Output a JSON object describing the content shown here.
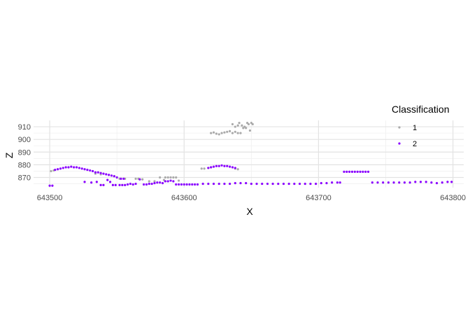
{
  "chart_data": {
    "type": "scatter",
    "xlabel": "X",
    "ylabel": "Z",
    "xlim": [
      643488,
      643808
    ],
    "ylim": [
      862,
      915
    ],
    "x_ticks": [
      643500,
      643600,
      643700,
      643800
    ],
    "x_tick_labels": [
      "643500",
      "643600",
      "643700",
      "643800"
    ],
    "y_ticks": [
      870,
      880,
      890,
      900,
      910
    ],
    "y_tick_labels": [
      "870",
      "880",
      "890",
      "900",
      "910"
    ],
    "grid": true,
    "legend": {
      "title": "Classification",
      "placement": "right",
      "entries": [
        {
          "label": "1",
          "color": "#aaaaaa"
        },
        {
          "label": "2",
          "color": "#8a00ff"
        }
      ]
    },
    "series": [
      {
        "name": "1",
        "color": "#aaaaaa",
        "points": [
          [
            643501,
            875
          ],
          [
            643503,
            875.5
          ],
          [
            643534,
            873
          ],
          [
            643538,
            872.5
          ],
          [
            643548,
            871
          ],
          [
            643552,
            869
          ],
          [
            643556,
            869
          ],
          [
            643564,
            869
          ],
          [
            643566,
            869
          ],
          [
            643569,
            868.5
          ],
          [
            643574,
            867
          ],
          [
            643578,
            867
          ],
          [
            643582,
            870
          ],
          [
            643585,
            868
          ],
          [
            643586,
            870
          ],
          [
            643588,
            870
          ],
          [
            643590,
            870
          ],
          [
            643592,
            870
          ],
          [
            643594,
            870
          ],
          [
            643596,
            867.5
          ],
          [
            643613,
            877
          ],
          [
            643615,
            877
          ],
          [
            643618,
            877.5
          ],
          [
            643620,
            878
          ],
          [
            643638,
            877
          ],
          [
            643640,
            876.5
          ],
          [
            643620,
            905
          ],
          [
            643622,
            905.5
          ],
          [
            643624,
            904.5
          ],
          [
            643626,
            904
          ],
          [
            643628,
            905
          ],
          [
            643630,
            905.5
          ],
          [
            643632,
            906
          ],
          [
            643634,
            906.5
          ],
          [
            643636,
            912
          ],
          [
            643636,
            905
          ],
          [
            643638,
            910
          ],
          [
            643638,
            906
          ],
          [
            643640,
            911
          ],
          [
            643640,
            905
          ],
          [
            643641,
            913
          ],
          [
            643642,
            905
          ],
          [
            643643,
            911
          ],
          [
            643644,
            909
          ],
          [
            643645,
            910
          ],
          [
            643646,
            909
          ],
          [
            643647,
            913
          ],
          [
            643648,
            912
          ],
          [
            643649,
            907
          ],
          [
            643650,
            913
          ],
          [
            643651,
            912
          ]
        ]
      },
      {
        "name": "2",
        "color": "#8a00ff",
        "points": [
          [
            643500,
            863.5
          ],
          [
            643502,
            863.5
          ],
          [
            643504,
            876
          ],
          [
            643506,
            876.5
          ],
          [
            643508,
            877
          ],
          [
            643510,
            877.5
          ],
          [
            643512,
            878
          ],
          [
            643514,
            878
          ],
          [
            643516,
            878.5
          ],
          [
            643518,
            878
          ],
          [
            643520,
            878
          ],
          [
            643522,
            877.5
          ],
          [
            643524,
            877
          ],
          [
            643526,
            876.5
          ],
          [
            643528,
            876
          ],
          [
            643530,
            875.5
          ],
          [
            643532,
            875
          ],
          [
            643534,
            874
          ],
          [
            643536,
            874
          ],
          [
            643538,
            873.5
          ],
          [
            643540,
            873
          ],
          [
            643542,
            872.5
          ],
          [
            643544,
            872
          ],
          [
            643546,
            871.5
          ],
          [
            643548,
            871
          ],
          [
            643550,
            870
          ],
          [
            643553,
            869
          ],
          [
            643555,
            869
          ],
          [
            643526,
            866.5
          ],
          [
            643531,
            866
          ],
          [
            643535,
            866.5
          ],
          [
            643538,
            864
          ],
          [
            643540,
            864
          ],
          [
            643543,
            868
          ],
          [
            643545,
            866.5
          ],
          [
            643547,
            864
          ],
          [
            643549,
            864
          ],
          [
            643552,
            864
          ],
          [
            643554,
            864
          ],
          [
            643556,
            864
          ],
          [
            643558,
            864.5
          ],
          [
            643560,
            865
          ],
          [
            643562,
            864.5
          ],
          [
            643564,
            865
          ],
          [
            643567,
            868.5
          ],
          [
            643570,
            864.5
          ],
          [
            643572,
            864.5
          ],
          [
            643574,
            865
          ],
          [
            643576,
            865
          ],
          [
            643578,
            865.5
          ],
          [
            643580,
            866
          ],
          [
            643582,
            866
          ],
          [
            643584,
            865.5
          ],
          [
            643586,
            867
          ],
          [
            643588,
            867
          ],
          [
            643590,
            867.5
          ],
          [
            643592,
            867
          ],
          [
            643594,
            864.5
          ],
          [
            643596,
            864.5
          ],
          [
            643598,
            864.5
          ],
          [
            643600,
            864.5
          ],
          [
            643602,
            864.5
          ],
          [
            643604,
            864.5
          ],
          [
            643606,
            864.5
          ],
          [
            643608,
            864.5
          ],
          [
            643610,
            864.5
          ],
          [
            643614,
            865
          ],
          [
            643618,
            865
          ],
          [
            643622,
            865
          ],
          [
            643626,
            865
          ],
          [
            643630,
            865
          ],
          [
            643634,
            865
          ],
          [
            643638,
            865.5
          ],
          [
            643618,
            877.5
          ],
          [
            643620,
            878
          ],
          [
            643622,
            878.5
          ],
          [
            643624,
            879
          ],
          [
            643626,
            879
          ],
          [
            643628,
            879.5
          ],
          [
            643630,
            879
          ],
          [
            643632,
            879
          ],
          [
            643634,
            878.5
          ],
          [
            643636,
            878
          ],
          [
            643638,
            877.5
          ],
          [
            643642,
            865.5
          ],
          [
            643646,
            865.5
          ],
          [
            643650,
            865
          ],
          [
            643654,
            865
          ],
          [
            643658,
            865
          ],
          [
            643662,
            865
          ],
          [
            643666,
            865
          ],
          [
            643670,
            865
          ],
          [
            643674,
            865
          ],
          [
            643678,
            865
          ],
          [
            643682,
            865
          ],
          [
            643686,
            865
          ],
          [
            643690,
            865
          ],
          [
            643694,
            865
          ],
          [
            643698,
            865
          ],
          [
            643702,
            865.5
          ],
          [
            643706,
            865.5
          ],
          [
            643710,
            866
          ],
          [
            643714,
            866
          ],
          [
            643716,
            866
          ],
          [
            643719,
            874.5
          ],
          [
            643721,
            874.5
          ],
          [
            643723,
            874.5
          ],
          [
            643725,
            874.5
          ],
          [
            643727,
            874.5
          ],
          [
            643729,
            874.5
          ],
          [
            643731,
            874.5
          ],
          [
            643733,
            874.5
          ],
          [
            643735,
            874.5
          ],
          [
            643737,
            874.5
          ],
          [
            643740,
            866
          ],
          [
            643744,
            866
          ],
          [
            643748,
            866
          ],
          [
            643752,
            866
          ],
          [
            643756,
            866
          ],
          [
            643760,
            866
          ],
          [
            643764,
            866
          ],
          [
            643768,
            866
          ],
          [
            643772,
            866.5
          ],
          [
            643776,
            866.5
          ],
          [
            643780,
            866.5
          ],
          [
            643784,
            866
          ],
          [
            643788,
            865.5
          ],
          [
            643792,
            866
          ],
          [
            643796,
            866.5
          ],
          [
            643799,
            866.5
          ]
        ]
      }
    ]
  }
}
